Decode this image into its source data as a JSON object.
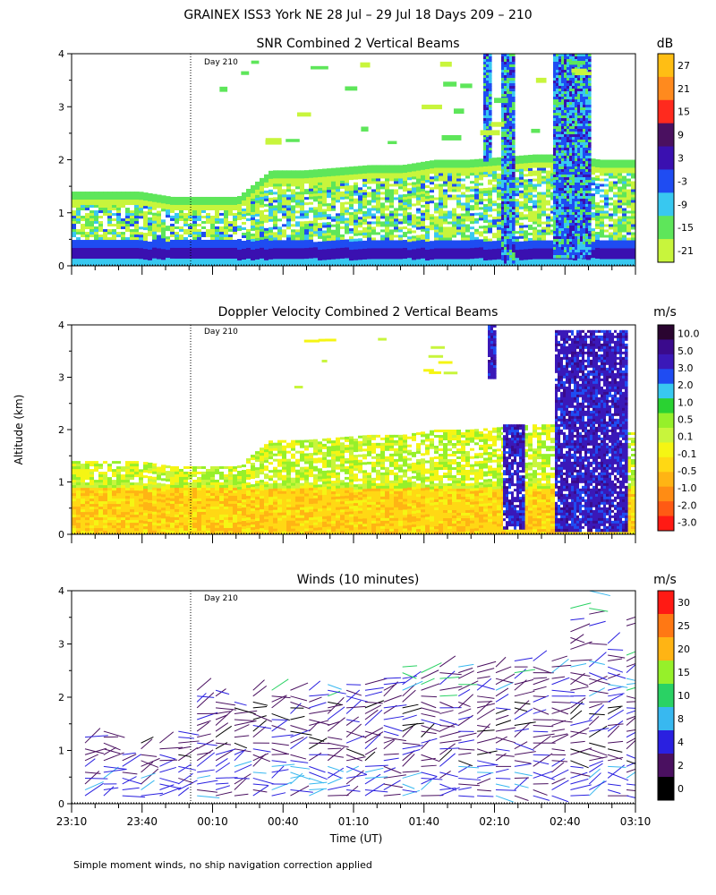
{
  "figure": {
    "title": "GRAINEX ISS3 York NE  28 Jul – 29 Jul 18 Days 209 – 210",
    "ylabel": "Altitude (km)",
    "xlabel": "Time (UT)",
    "footnote": "Simple moment winds, no ship navigation correction applied",
    "day_marker": "Day 210"
  },
  "colors": {
    "snr": [
      "#c8f53c",
      "#5ee65a",
      "#38c8f0",
      "#1f4cf2",
      "#3a10b0",
      "#4a1060",
      "#ff2a1e",
      "#ff8a1e",
      "#ffbe14"
    ],
    "velocity": [
      "#ff1a14",
      "#ff5a14",
      "#ff8c14",
      "#ffb414",
      "#ffd814",
      "#f5f514",
      "#c8f53c",
      "#96f02a",
      "#2ad232",
      "#38c8f0",
      "#1f4cf2",
      "#3a18b8",
      "#3a0a8c",
      "#2a0530"
    ],
    "winds": [
      "#000000",
      "#4a1060",
      "#2a20e0",
      "#38b8f0",
      "#2ad264",
      "#96f02a",
      "#ffb414",
      "#ff7814",
      "#ff1a14"
    ]
  },
  "chart_data": [
    {
      "type": "heatmap",
      "title": "SNR Combined 2 Vertical Beams",
      "colorbar_unit": "dB",
      "colorbar_ticks": [
        "27",
        "21",
        "15",
        "9",
        "3",
        "-3",
        "-9",
        "-15",
        "-21"
      ],
      "x_tick_labels": [],
      "y_ticks": [
        "0",
        "1",
        "2",
        "3",
        "4"
      ],
      "xlim": [
        "23:10",
        "03:10"
      ],
      "ylim": [
        0,
        4
      ],
      "echo_top_km": [
        1.4,
        1.4,
        1.4,
        1.3,
        1.3,
        1.3,
        1.8,
        1.8,
        1.85,
        1.9,
        1.9,
        2.0,
        2.0,
        2.05,
        2.1,
        2.1,
        2.0,
        2.0
      ]
    },
    {
      "type": "heatmap",
      "title": "Doppler Velocity Combined 2 Vertical Beams",
      "colorbar_unit": "m/s",
      "colorbar_ticks": [
        "10.0",
        "5.0",
        "3.0",
        "2.0",
        "1.0",
        "0.5",
        "0.1",
        "-0.1",
        "-0.5",
        "-1.0",
        "-2.0",
        "-3.0"
      ],
      "x_tick_labels": [],
      "y_ticks": [
        "0",
        "1",
        "2",
        "3",
        "4"
      ],
      "xlim": [
        "23:10",
        "03:10"
      ],
      "ylim": [
        0,
        4
      ]
    },
    {
      "type": "scatter",
      "title": "Winds (10 minutes)",
      "colorbar_unit": "m/s",
      "colorbar_ticks": [
        "30",
        "25",
        "20",
        "15",
        "10",
        "8",
        "4",
        "2",
        "0"
      ],
      "x_tick_labels": [
        "23:10",
        "23:40",
        "00:10",
        "00:40",
        "01:10",
        "01:40",
        "02:10",
        "02:40",
        "03:10"
      ],
      "y_ticks": [
        "0",
        "1",
        "2",
        "3",
        "4"
      ],
      "xlim": [
        "23:10",
        "03:10"
      ],
      "ylim": [
        0,
        4
      ],
      "profile_top_km": [
        1.3,
        1.4,
        1.0,
        1.2,
        1.2,
        1.4,
        2.2,
        2.2,
        2.0,
        2.2,
        2.2,
        2.2,
        2.2,
        2.3,
        2.3,
        2.3,
        2.4,
        2.6,
        2.5,
        2.6,
        2.6,
        2.6,
        2.6,
        2.7,
        2.7,
        2.9,
        4.1,
        4.1,
        3.3,
        4.0
      ]
    }
  ]
}
